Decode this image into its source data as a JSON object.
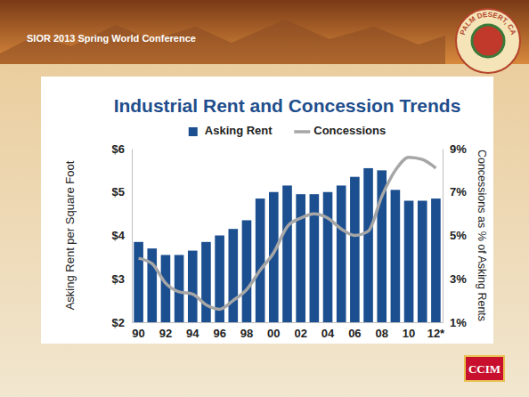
{
  "slide": {
    "header": "SIOR 2013 Spring World Conference",
    "badge": "PALM DESERT, CA",
    "logo": "CCIM"
  },
  "chart_data": {
    "type": "bar",
    "title": "Industrial Rent and Concession Trends",
    "categories": [
      "90",
      null,
      "92",
      null,
      "94",
      null,
      "96",
      null,
      "98",
      null,
      "00",
      null,
      "02",
      null,
      "04",
      null,
      "06",
      null,
      "08",
      null,
      "10",
      null,
      "12*"
    ],
    "series": [
      {
        "name": "Asking Rent",
        "type": "bar",
        "color": "#1c4f8f",
        "values": [
          3.85,
          3.7,
          3.55,
          3.55,
          3.65,
          3.85,
          4.0,
          4.15,
          4.35,
          4.85,
          5.0,
          5.15,
          4.95,
          4.95,
          5.0,
          5.15,
          5.35,
          5.55,
          5.5,
          5.05,
          4.8,
          4.8,
          4.85
        ]
      },
      {
        "name": "Concessions",
        "type": "line",
        "axis": "y2",
        "color": "#a6a6a6",
        "values": [
          3.95,
          3.7,
          2.8,
          2.4,
          2.3,
          1.8,
          1.6,
          2.0,
          2.5,
          3.4,
          4.2,
          5.4,
          5.8,
          6.0,
          5.8,
          5.3,
          5.0,
          5.2,
          6.8,
          8.0,
          8.6,
          8.5,
          8.1
        ]
      }
    ],
    "ylabel": "Asking Rent per Square Foot",
    "y2label": "Concessions as % of Asking Rents",
    "ylim": [
      2,
      6
    ],
    "yticks": [
      {
        "value": 2,
        "label": "$2"
      },
      {
        "value": 3,
        "label": "$3"
      },
      {
        "value": 4,
        "label": "$4"
      },
      {
        "value": 5,
        "label": "$5"
      },
      {
        "value": 6,
        "label": "$6"
      }
    ],
    "y2lim": [
      1,
      9
    ],
    "y2ticks": [
      {
        "value": 1,
        "label": "1%"
      },
      {
        "value": 3,
        "label": "3%"
      },
      {
        "value": 5,
        "label": "5%"
      },
      {
        "value": 7,
        "label": "7%"
      },
      {
        "value": 9,
        "label": "9%"
      }
    ],
    "legend": "top",
    "grid": false
  }
}
